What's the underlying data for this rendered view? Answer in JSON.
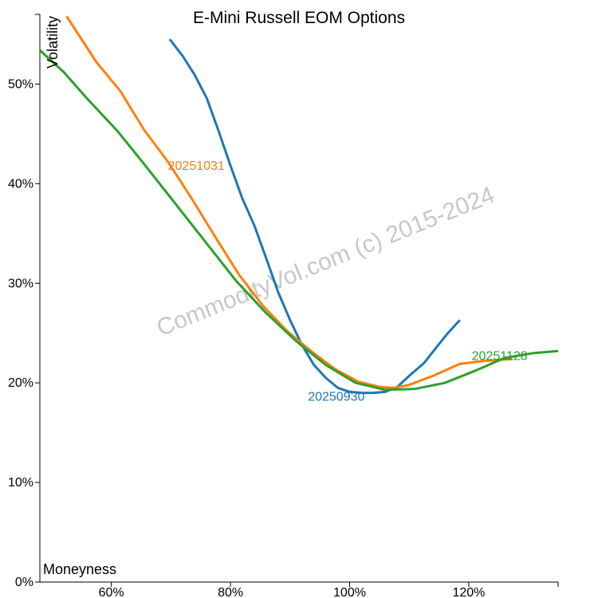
{
  "chart_data": {
    "type": "line",
    "title": "E-Mini Russell EOM Options",
    "xlabel": "Moneyness",
    "ylabel": "Volatility",
    "watermark": "CommodityVol.com (c) 2015-2024",
    "xlim": [
      48,
      135
    ],
    "ylim": [
      0,
      57
    ],
    "x_ticks": [
      60,
      80,
      100,
      120
    ],
    "x_tick_labels": [
      "60%",
      "80%",
      "100%",
      "120%"
    ],
    "y_ticks": [
      0,
      10,
      20,
      30,
      40,
      50
    ],
    "y_tick_labels": [
      "0%",
      "10%",
      "20%",
      "30%",
      "40%",
      "50%"
    ],
    "series": [
      {
        "name": "20250930",
        "color": "#1f77b4",
        "x": [
          69.8,
          72,
          74,
          76,
          78,
          80,
          82,
          84,
          86,
          88,
          90,
          92,
          94,
          96,
          98,
          100,
          102,
          104,
          106,
          108,
          110,
          112.5,
          115,
          116.5,
          118.5
        ],
        "y": [
          54.5,
          52.8,
          50.9,
          48.6,
          45.3,
          41.8,
          38.5,
          35.8,
          32.5,
          29.1,
          26.3,
          23.8,
          21.8,
          20.5,
          19.5,
          19.1,
          19.0,
          19.0,
          19.1,
          19.6,
          20.7,
          22.0,
          23.9,
          25.0,
          26.3
        ]
      },
      {
        "name": "20251031",
        "color": "#ff7f0e",
        "x": [
          52.5,
          57.5,
          61.5,
          65.5,
          69.5,
          73.5,
          77.5,
          81.5,
          85.5,
          89.5,
          93.5,
          97.5,
          101.5,
          105,
          107.5,
          110,
          114,
          118.5,
          122.5,
          127.3
        ],
        "y": [
          56.8,
          52.2,
          49.3,
          45.4,
          42.2,
          38.5,
          34.6,
          30.8,
          27.7,
          25.2,
          23.2,
          21.4,
          20.1,
          19.6,
          19.5,
          19.8,
          20.7,
          21.9,
          22.2,
          22.4
        ]
      },
      {
        "name": "20251128",
        "color": "#2ca02c",
        "x": [
          48,
          52,
          56,
          61,
          66,
          71,
          76,
          81,
          86,
          91,
          96,
          101,
          106,
          111,
          116,
          121,
          126,
          131,
          135
        ],
        "y": [
          53.4,
          51.2,
          48.5,
          45.3,
          41.6,
          37.8,
          34.0,
          30.2,
          27.0,
          24.2,
          21.8,
          20.0,
          19.3,
          19.4,
          20.0,
          21.2,
          22.5,
          23.0,
          23.2
        ]
      }
    ],
    "series_labels": [
      {
        "text": "20250930",
        "x": 93,
        "y": 18.2
      },
      {
        "text": "20251031",
        "x": 69.5,
        "y": 41.4
      },
      {
        "text": "20251128",
        "x": 120.5,
        "y": 22.3
      }
    ]
  }
}
